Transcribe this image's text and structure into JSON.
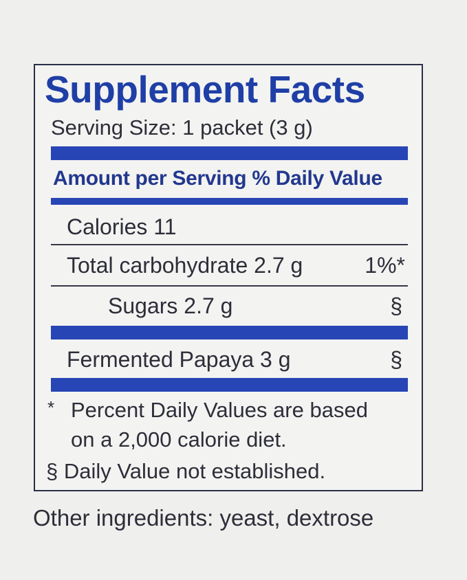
{
  "label": {
    "title": "Supplement Facts",
    "serving_size": "Serving Size: 1 packet (3 g)",
    "column_header": "Amount per Serving % Daily Value",
    "rows": [
      {
        "name": "Calories 11",
        "dv": ""
      },
      {
        "name": "Total carbohydrate  2.7 g",
        "dv": "1%*"
      },
      {
        "name": "Sugars  2.7 g",
        "dv": "§"
      },
      {
        "name": "Fermented Papaya  3 g",
        "dv": "§"
      }
    ],
    "footnotes": {
      "asterisk_mark": "*",
      "asterisk_line1": "Percent Daily Values are based",
      "asterisk_line2": "on a 2,000 calorie diet.",
      "section_line": "§ Daily Value not established."
    }
  },
  "other_ingredients": "Other ingredients: yeast, dextrose",
  "colors": {
    "title_blue": "#1f3fa6",
    "bar_blue": "#2745b5",
    "text_dark": "#2d2e39",
    "background": "#efefed"
  }
}
